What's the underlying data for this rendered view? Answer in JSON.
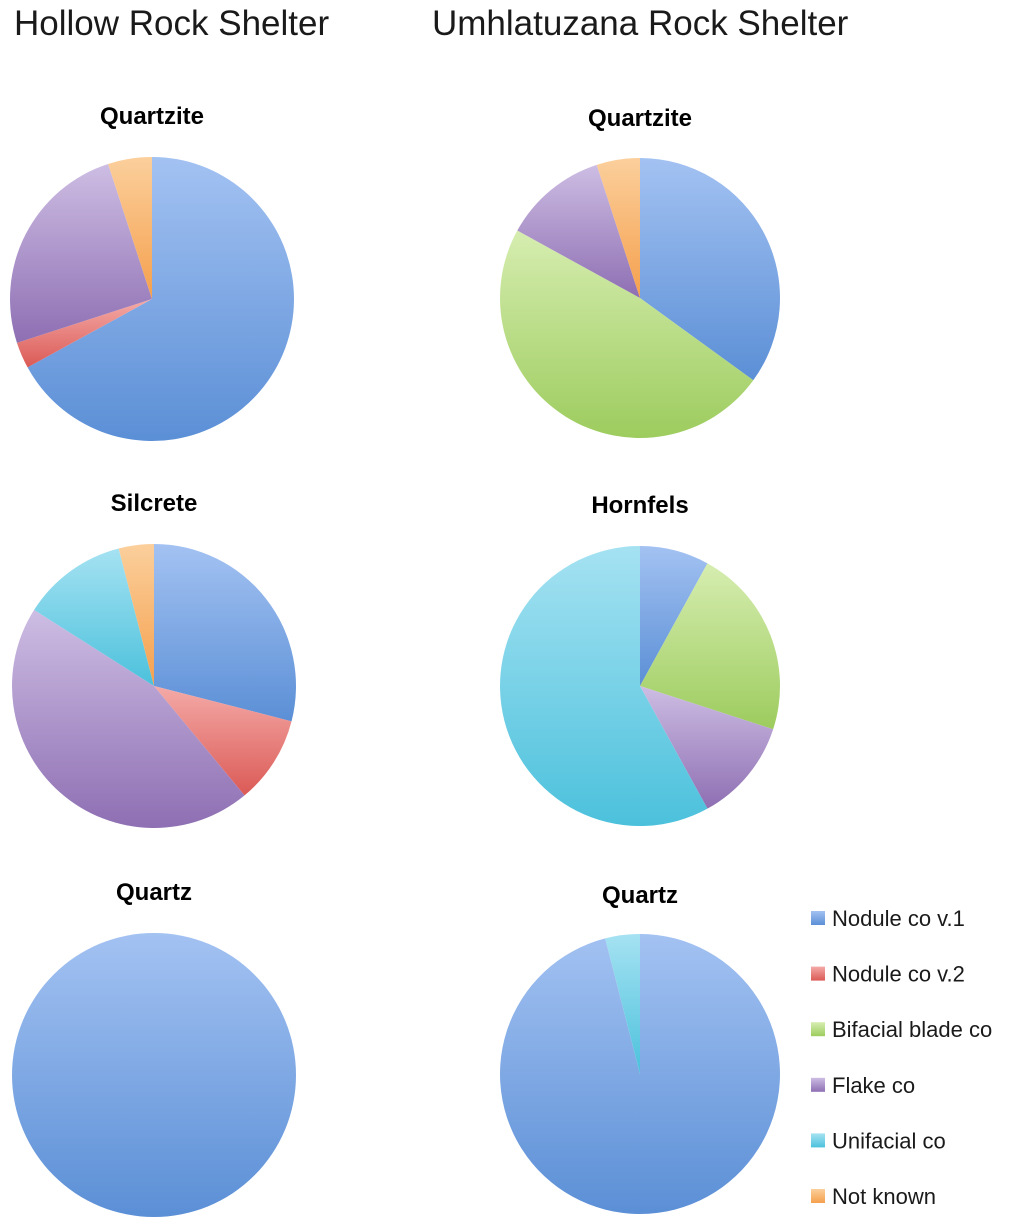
{
  "headings": {
    "left": "Hollow Rock Shelter",
    "right": "Umhlatuzana Rock Shelter"
  },
  "legend": [
    {
      "label": "Nodule co v.1",
      "color": "#5b8fd6"
    },
    {
      "label": "Nodule co v.2",
      "color": "#db5a56"
    },
    {
      "label": "Bifacial blade co",
      "color": "#9dcc5e"
    },
    {
      "label": "Flake co",
      "color": "#8e6fb3"
    },
    {
      "label": "Unifacial co",
      "color": "#4cc1dc"
    },
    {
      "label": "Not known",
      "color": "#f5a04d"
    }
  ],
  "chart_data": [
    {
      "type": "pie",
      "site": "Hollow Rock Shelter",
      "title": "Quartzite",
      "categories": [
        "Nodule co v.1",
        "Nodule co v.2",
        "Bifacial blade co",
        "Flake co",
        "Unifacial co",
        "Not known"
      ],
      "values": [
        67,
        3,
        0,
        25,
        0,
        5
      ]
    },
    {
      "type": "pie",
      "site": "Umhlatuzana Rock Shelter",
      "title": "Quartzite",
      "categories": [
        "Nodule co v.1",
        "Nodule co v.2",
        "Bifacial blade co",
        "Flake co",
        "Unifacial co",
        "Not known"
      ],
      "values": [
        35,
        0,
        48,
        12,
        0,
        5
      ]
    },
    {
      "type": "pie",
      "site": "Hollow Rock Shelter",
      "title": "Silcrete",
      "categories": [
        "Nodule co v.1",
        "Nodule co v.2",
        "Bifacial blade co",
        "Flake co",
        "Unifacial co",
        "Not known"
      ],
      "values": [
        29,
        10,
        0,
        45,
        12,
        4
      ]
    },
    {
      "type": "pie",
      "site": "Umhlatuzana Rock Shelter",
      "title": "Hornfels",
      "categories": [
        "Nodule co v.1",
        "Nodule co v.2",
        "Bifacial blade co",
        "Flake co",
        "Unifacial co",
        "Not known"
      ],
      "values": [
        8,
        0,
        22,
        12,
        58,
        0
      ]
    },
    {
      "type": "pie",
      "site": "Hollow Rock Shelter",
      "title": "Quartz",
      "categories": [
        "Nodule co v.1",
        "Nodule co v.2",
        "Bifacial blade co",
        "Flake co",
        "Unifacial co",
        "Not known"
      ],
      "values": [
        100,
        0,
        0,
        0,
        0,
        0
      ]
    },
    {
      "type": "pie",
      "site": "Umhlatuzana Rock Shelter",
      "title": "Quartz",
      "categories": [
        "Nodule co v.1",
        "Nodule co v.2",
        "Bifacial blade co",
        "Flake co",
        "Unifacial co",
        "Not known"
      ],
      "values": [
        96,
        0,
        0,
        0,
        4,
        0
      ]
    }
  ]
}
